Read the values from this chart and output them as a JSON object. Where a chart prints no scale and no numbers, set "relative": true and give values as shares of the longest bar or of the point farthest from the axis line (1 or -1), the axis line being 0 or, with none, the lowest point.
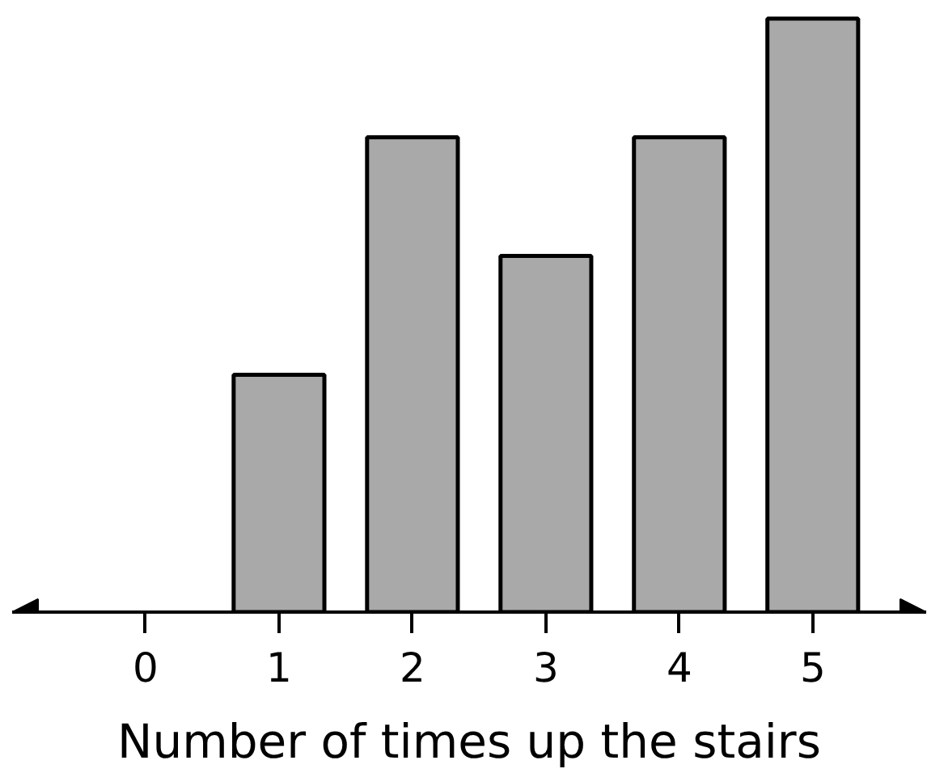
{
  "chart_data": {
    "type": "bar",
    "xlabel": "Number of times up the stairs",
    "x": [
      1,
      2,
      3,
      4,
      5
    ],
    "values": [
      0.4,
      0.8,
      0.6,
      0.8,
      1
    ],
    "color": "#a9a9a9",
    "relative": true,
    "xlim": [
      -1,
      5.85
    ],
    "xticks": [
      0,
      1,
      2,
      3,
      4,
      5
    ],
    "grid": false,
    "tick_labels": "x"
  }
}
